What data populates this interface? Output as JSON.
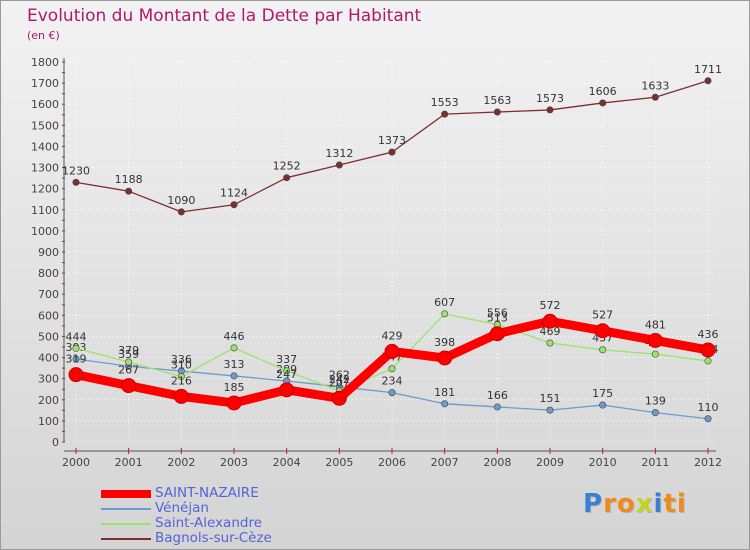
{
  "chart_data": {
    "type": "line",
    "title": "Evolution du Montant de la Dette par Habitant",
    "ylabel": "(en €)",
    "x": [
      "2000",
      "2001",
      "2002",
      "2003",
      "2004",
      "2005",
      "2006",
      "2007",
      "2008",
      "2009",
      "2010",
      "2011",
      "2012"
    ],
    "ylim": [
      0,
      1800
    ],
    "yticks": [
      0,
      100,
      200,
      300,
      400,
      500,
      600,
      700,
      800,
      900,
      1000,
      1100,
      1200,
      1300,
      1400,
      1500,
      1600,
      1700,
      1800
    ],
    "grid": true,
    "legend_position": "bottom-left",
    "series": [
      {
        "name": "SAINT-NAZAIRE",
        "color": "#ff0000",
        "values": [
          319,
          267,
          216,
          185,
          247,
          207,
          429,
          398,
          513,
          572,
          527,
          481,
          436
        ]
      },
      {
        "name": "Vénéjan",
        "color": "#6b9ccd",
        "values": [
          393,
          359,
          336,
          313,
          289,
          262,
          234,
          181,
          166,
          151,
          175,
          139,
          110
        ]
      },
      {
        "name": "Saint-Alexandre",
        "color": "#9be36b",
        "values": [
          444,
          379,
          310,
          446,
          337,
          242,
          347,
          607,
          556,
          469,
          437,
          416,
          384
        ]
      },
      {
        "name": "Bagnols-sur-Cèze",
        "color": "#7d2e2e",
        "values": [
          1230,
          1188,
          1090,
          1124,
          1252,
          1312,
          1373,
          1553,
          1563,
          1573,
          1606,
          1633,
          1711
        ]
      }
    ]
  },
  "legend": {
    "items": [
      {
        "label": "SAINT-NAZAIRE",
        "color": "#ff0000"
      },
      {
        "label": "Vénéjan",
        "color": "#6b9ccd"
      },
      {
        "label": "Saint-Alexandre",
        "color": "#9be36b"
      },
      {
        "label": "Bagnols-sur-Cèze",
        "color": "#7d2e2e"
      }
    ]
  },
  "logo": {
    "letters": [
      "P",
      "r",
      "o",
      "x",
      "i",
      "t",
      "i"
    ],
    "colors": [
      "#3b7ed6",
      "#f08a1c",
      "#f08a1c",
      "#c4d41c",
      "#3b7ed6",
      "#f08a1c",
      "#f08a1c"
    ]
  }
}
